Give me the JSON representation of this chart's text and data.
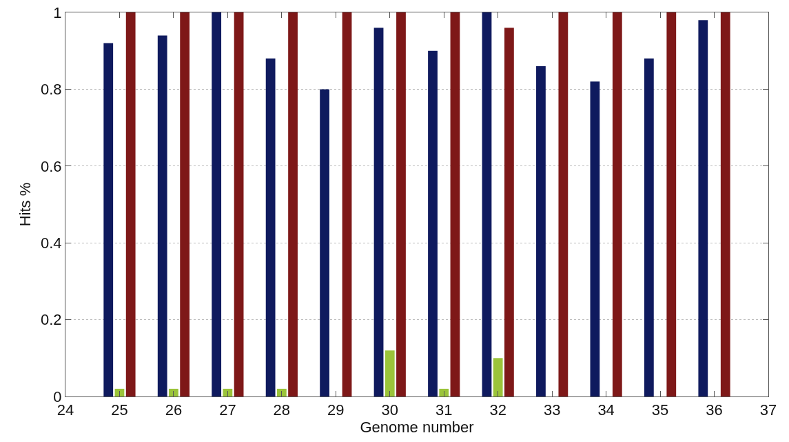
{
  "chart_data": {
    "type": "bar",
    "xlabel": "Genome number",
    "ylabel": "Hits %",
    "x": [
      25,
      26,
      27,
      28,
      29,
      30,
      31,
      32,
      33,
      34,
      35,
      36
    ],
    "series": [
      {
        "color": "#0f1a5e",
        "values": [
          0.92,
          0.94,
          1.0,
          0.88,
          0.8,
          0.96,
          0.9,
          1.0,
          0.86,
          0.82,
          0.88,
          0.98
        ]
      },
      {
        "color": "#9bc43a",
        "values": [
          0.02,
          0.02,
          0.02,
          0.02,
          0,
          0.12,
          0.02,
          0.1,
          0,
          0,
          0,
          0
        ]
      },
      {
        "color": "#7e1818",
        "values": [
          1.0,
          1.0,
          1.0,
          1.0,
          1.0,
          1.0,
          1.0,
          0.96,
          1.0,
          1.0,
          1.0,
          1.0
        ]
      }
    ],
    "xlim": [
      24,
      37
    ],
    "xticks": [
      24,
      25,
      26,
      27,
      28,
      29,
      30,
      31,
      32,
      33,
      34,
      35,
      36,
      37
    ],
    "ylim": [
      0,
      1
    ],
    "yticks": [
      0,
      0.2,
      0.4,
      0.6,
      0.8,
      1
    ],
    "grid": "y"
  }
}
